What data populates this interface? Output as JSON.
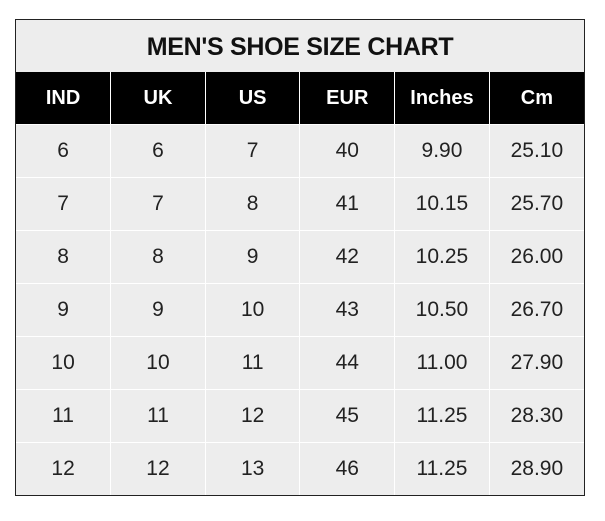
{
  "title": "MEN'S SHOE SIZE CHART",
  "columns": [
    "IND",
    "UK",
    "US",
    "EUR",
    "Inches",
    "Cm"
  ],
  "rows": [
    [
      "6",
      "6",
      "7",
      "40",
      "9.90",
      "25.10"
    ],
    [
      "7",
      "7",
      "8",
      "41",
      "10.15",
      "25.70"
    ],
    [
      "8",
      "8",
      "9",
      "42",
      "10.25",
      "26.00"
    ],
    [
      "9",
      "9",
      "10",
      "43",
      "10.50",
      "26.70"
    ],
    [
      "10",
      "10",
      "11",
      "44",
      "11.00",
      "27.90"
    ],
    [
      "11",
      "11",
      "12",
      "45",
      "11.25",
      "28.30"
    ],
    [
      "12",
      "12",
      "13",
      "46",
      "11.25",
      "28.90"
    ]
  ],
  "colors": {
    "header_bg": "#000000",
    "cell_bg": "#ededed",
    "text": "#222222"
  }
}
